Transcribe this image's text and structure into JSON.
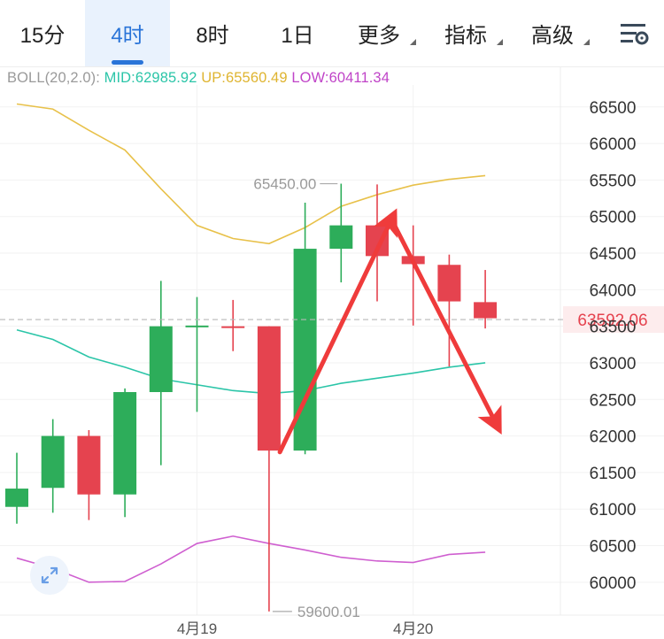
{
  "tabs": [
    {
      "label": "15分",
      "active": false
    },
    {
      "label": "4时",
      "active": true
    },
    {
      "label": "8时",
      "active": false
    },
    {
      "label": "1日",
      "active": false
    }
  ],
  "menus": [
    {
      "label": "更多"
    },
    {
      "label": "指标"
    },
    {
      "label": "高级"
    }
  ],
  "settings_icon": "chart-settings-icon",
  "indicator": {
    "name": "BOLL(20,2.0):",
    "mid": "MID:62985.92",
    "up": "UP:65560.49",
    "low": "LOW:60411.34"
  },
  "colors": {
    "up_candle": "#2dad5a",
    "down_candle": "#e5434f",
    "mid_line": "#2bc5a8",
    "upper_line": "#e8c14a",
    "lower_line": "#cf5fd0",
    "arrow": "#ef3b3b",
    "accent": "#2a74d8"
  },
  "chart_data": {
    "type": "candlestick",
    "ylim": [
      59550,
      66800
    ],
    "y_ticks": [
      66500,
      66000,
      65500,
      65000,
      64500,
      64000,
      63500,
      63000,
      62500,
      62000,
      61500,
      61000,
      60500,
      60000
    ],
    "x_labels": [
      {
        "label": "4月19",
        "index": 5
      },
      {
        "label": "4月20",
        "index": 11
      }
    ],
    "current_price": "63592.06",
    "current_price_value": 63592.06,
    "high_label": "65450.00",
    "high_value": 65450,
    "low_label": "59600.01",
    "low_value": 59600.01,
    "candles": [
      {
        "open": 61030,
        "high": 61770,
        "low": 60800,
        "close": 61280
      },
      {
        "open": 61290,
        "high": 62230,
        "low": 60950,
        "close": 62000
      },
      {
        "open": 62000,
        "high": 62080,
        "low": 60850,
        "close": 61200
      },
      {
        "open": 61200,
        "high": 62650,
        "low": 60890,
        "close": 62600
      },
      {
        "open": 62600,
        "high": 64120,
        "low": 61600,
        "close": 63500
      },
      {
        "open": 63490,
        "high": 63900,
        "low": 62330,
        "close": 63510
      },
      {
        "open": 63500,
        "high": 63860,
        "low": 63160,
        "close": 63500
      },
      {
        "open": 63500,
        "high": 63500,
        "low": 59600.01,
        "close": 61800
      },
      {
        "open": 61800,
        "high": 65190,
        "low": 61750,
        "close": 64560
      },
      {
        "open": 64560,
        "high": 65450,
        "low": 64100,
        "close": 64880
      },
      {
        "open": 64880,
        "high": 65440,
        "low": 63840,
        "close": 64460
      },
      {
        "open": 64460,
        "high": 64880,
        "low": 63510,
        "close": 64350
      },
      {
        "open": 64340,
        "high": 64480,
        "low": 62950,
        "close": 63840
      },
      {
        "open": 63830,
        "high": 64270,
        "low": 63470,
        "close": 63610
      }
    ],
    "boll_mid": [
      63450,
      63320,
      63080,
      62940,
      62780,
      62700,
      62620,
      62580,
      62620,
      62720,
      62790,
      62860,
      62940,
      63000
    ],
    "boll_upper": [
      66540,
      66470,
      66180,
      65910,
      65380,
      64880,
      64700,
      64630,
      64850,
      65140,
      65300,
      65430,
      65510,
      65560
    ],
    "boll_lower": [
      60330,
      60190,
      60000,
      60010,
      60250,
      60530,
      60630,
      60530,
      60440,
      60340,
      60290,
      60270,
      60380,
      60410
    ],
    "annotations": [
      {
        "type": "arrow-up",
        "from": {
          "index": 7.3,
          "price": 61780
        },
        "to": {
          "index": 10.4,
          "price": 64960
        }
      },
      {
        "type": "arrow-down",
        "from": {
          "index": 10.4,
          "price": 64960
        },
        "to": {
          "index": 13.3,
          "price": 62170
        }
      }
    ]
  }
}
